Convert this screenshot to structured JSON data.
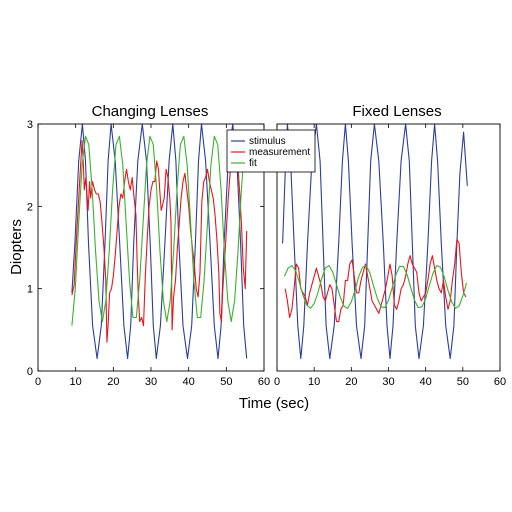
{
  "chart_data": [
    {
      "type": "line",
      "title": "Changing Lenses",
      "xlabel": "Time (sec)",
      "ylabel": "Diopters",
      "xlim": [
        0,
        60
      ],
      "ylim": [
        0,
        3
      ],
      "xticks": [
        0,
        10,
        20,
        30,
        40,
        50,
        60
      ],
      "yticks": [
        0,
        1,
        2,
        3
      ],
      "grid": false,
      "series": [
        {
          "name": "stimulus",
          "color": "#2b3d9e",
          "x": [
            9,
            9.8,
            10.8,
            11.8,
            12.6,
            13.4,
            14.5,
            15.7,
            16.8,
            17.8,
            18.6,
            19.4,
            20.5,
            21.7,
            22.8,
            23.8,
            24.6,
            25.4,
            26.5,
            27.7,
            28.8,
            29.8,
            30.6,
            31.4,
            32.5,
            33.7,
            34.8,
            35.8,
            36.6,
            37.4,
            38.5,
            39.7,
            40.8,
            41.8,
            42.6,
            43.4,
            44.5,
            45.7,
            46.8,
            47.8,
            48.6,
            49.4,
            50.5,
            51.7,
            52.8,
            53.8,
            54.6,
            55.4
          ],
          "y": [
            0.95,
            1.55,
            2.55,
            3,
            2.55,
            1.55,
            0.55,
            0.15,
            0.55,
            1.55,
            2.55,
            3,
            2.55,
            1.55,
            0.55,
            0.15,
            0.55,
            1.55,
            2.55,
            3,
            2.55,
            1.55,
            0.55,
            0.15,
            0.55,
            1.55,
            2.55,
            3,
            2.55,
            1.55,
            0.55,
            0.15,
            0.55,
            1.55,
            2.55,
            3,
            2.55,
            1.55,
            0.55,
            0.15,
            0.55,
            1.55,
            2.55,
            3,
            2.55,
            1.55,
            0.55,
            0.15
          ]
        },
        {
          "name": "measurement",
          "color": "#e8161b",
          "x": [
            9,
            9.6,
            10.2,
            10.8,
            11.3,
            11.7,
            12,
            12.3,
            12.7,
            13,
            13.3,
            13.7,
            14,
            14.5,
            15,
            15.5,
            16,
            16.5,
            17,
            17.5,
            18,
            18.3,
            18.6,
            19,
            19.5,
            20,
            20.5,
            21,
            21.5,
            22,
            22.5,
            23,
            23.5,
            24,
            24.5,
            25,
            25.5,
            26,
            26.3,
            26.6,
            27,
            27.5,
            28,
            28.5,
            29,
            29.5,
            30,
            30.5,
            31,
            31.5,
            32,
            32.3,
            32.7,
            33,
            33.5,
            34,
            34.5,
            35,
            35.3,
            35.6,
            36,
            36.5,
            37,
            37.5,
            38,
            38.5,
            39,
            39.5,
            40,
            40.5,
            41,
            41.5,
            42,
            42.5,
            43,
            43.5,
            44,
            44.5,
            45,
            45.5,
            46,
            46.5,
            47,
            47.5,
            48,
            48.3,
            48.7,
            49,
            49.5,
            50,
            50.5,
            51,
            51.5,
            52,
            52.5,
            53,
            53.5,
            54,
            54.5,
            55,
            55.4
          ],
          "y": [
            0.92,
            1.05,
            1.6,
            2.1,
            2.5,
            2.8,
            2.55,
            2.2,
            2.35,
            2.15,
            1.95,
            2.3,
            2.1,
            2.3,
            2.2,
            2.15,
            2.15,
            2.05,
            1.8,
            1.5,
            1.1,
            0.35,
            0.55,
            0.95,
            1.0,
            1.15,
            1.4,
            1.7,
            2.0,
            2.15,
            2.1,
            2.3,
            2.45,
            2.3,
            2.2,
            2.35,
            2.1,
            1.9,
            1.35,
            0.95,
            0.6,
            0.65,
            0.55,
            1.15,
            1.6,
            2.0,
            2.2,
            2.3,
            2.3,
            2.55,
            2.45,
            2.2,
            1.95,
            2.0,
            2.1,
            2.45,
            2.35,
            2.1,
            1.8,
            0.5,
            0.9,
            1.1,
            1.5,
            1.8,
            2.1,
            2.3,
            2.4,
            2.2,
            2.0,
            1.7,
            1.5,
            1.3,
            1.0,
            0.9,
            1.2,
            2.05,
            2.3,
            2.35,
            2.45,
            2.3,
            2.2,
            2.1,
            1.9,
            1.6,
            1.2,
            0.7,
            0.6,
            0.95,
            1.3,
            1.7,
            2.1,
            2.4,
            2.6,
            2.65,
            2.7,
            2.55,
            2.2,
            1.8,
            1.25,
            1.0,
            1.7
          ]
        },
        {
          "name": "fit",
          "color": "#3bb22d",
          "x": [
            9,
            9.9,
            10.8,
            11.7,
            12.6,
            13.5,
            14.4,
            15.3,
            16.2,
            17.1,
            18,
            18.9,
            19.8,
            20.7,
            21.6,
            22.5,
            23.4,
            24.3,
            25.2,
            26.1,
            27,
            27.9,
            28.8,
            29.7,
            30.6,
            31.5,
            32.4,
            33.3,
            34.2,
            35.1,
            36,
            36.9,
            37.8,
            38.7,
            39.6,
            40.5,
            41.4,
            42.3,
            43.2,
            44.1,
            45,
            45.9,
            46.8,
            47.7,
            48.6,
            49.5,
            50.4,
            51.3,
            52.2,
            53.1,
            54,
            54.9
          ],
          "y": [
            0.55,
            1.0,
            1.8,
            2.5,
            2.85,
            2.75,
            2.2,
            1.45,
            0.85,
            0.6,
            0.85,
            1.45,
            2.2,
            2.75,
            2.85,
            2.5,
            1.8,
            1.1,
            0.65,
            0.65,
            1.1,
            1.8,
            2.5,
            2.85,
            2.75,
            2.2,
            1.45,
            0.85,
            0.6,
            0.85,
            1.45,
            2.2,
            2.75,
            2.85,
            2.5,
            1.8,
            1.1,
            0.65,
            0.65,
            1.1,
            1.8,
            2.5,
            2.85,
            2.75,
            2.2,
            1.45,
            0.85,
            0.6,
            0.85,
            1.45,
            2.2,
            2.75
          ]
        }
      ]
    },
    {
      "type": "line",
      "title": "Fixed Lenses",
      "xlabel": "Time (sec)",
      "ylabel": "",
      "xlim": [
        0,
        60
      ],
      "ylim": [
        0,
        3
      ],
      "xticks": [
        0,
        10,
        20,
        30,
        40,
        50,
        60
      ],
      "yticks": [],
      "grid": false,
      "series": [
        {
          "name": "stimulus",
          "color": "#2b3d9e",
          "x": [
            1.5,
            2.2,
            2.8,
            3.6,
            4.6,
            5.6,
            6.4,
            7.2,
            8.2,
            9.4,
            10.6,
            11.6,
            12.4,
            13.2,
            14.2,
            15.4,
            16.6,
            17.6,
            18.4,
            19.2,
            20.2,
            21.4,
            22.6,
            23.6,
            24.4,
            25.2,
            26.2,
            27.4,
            28.6,
            29.6,
            30.4,
            31.2,
            32.2,
            33.4,
            34.6,
            35.6,
            36.4,
            37.2,
            38.2,
            39.4,
            40.6,
            41.6,
            42.4,
            43.2,
            44.2,
            45.4,
            46.6,
            47.6,
            48.4,
            49.2,
            50.2,
            51.2
          ],
          "y": [
            1.55,
            2.4,
            3,
            2.6,
            1.55,
            0.55,
            0.15,
            0.55,
            1.55,
            2.55,
            3,
            2.55,
            1.55,
            0.55,
            0.15,
            0.55,
            1.55,
            2.55,
            3,
            2.55,
            1.55,
            0.55,
            0.15,
            0.55,
            1.55,
            2.55,
            3,
            2.55,
            1.55,
            0.55,
            0.15,
            0.55,
            1.55,
            2.55,
            3,
            2.55,
            1.55,
            0.55,
            0.15,
            0.55,
            1.55,
            2.55,
            3,
            2.55,
            1.55,
            0.55,
            0.15,
            0.55,
            1.55,
            2.4,
            2.9,
            2.25
          ]
        },
        {
          "name": "measurement",
          "color": "#e8161b",
          "x": [
            2.2,
            2.8,
            3.4,
            4,
            4.6,
            5.2,
            5.8,
            6.4,
            7,
            7.6,
            8.2,
            8.8,
            9.4,
            10,
            10.6,
            11.2,
            11.8,
            12.4,
            13,
            13.6,
            14.2,
            14.8,
            15.4,
            16,
            16.6,
            17.2,
            17.8,
            18.4,
            19,
            19.6,
            20.2,
            20.8,
            21.4,
            22,
            22.6,
            23.2,
            23.8,
            24.4,
            25,
            25.6,
            26.2,
            26.8,
            27.4,
            28,
            28.6,
            29.2,
            29.8,
            30.4,
            31,
            31.6,
            32.2,
            32.8,
            33.4,
            34,
            34.6,
            35.2,
            35.8,
            36.4,
            37,
            37.6,
            38.2,
            38.8,
            39.4,
            40,
            40.6,
            41.2,
            41.8,
            42.4,
            43,
            43.6,
            44.2,
            44.8,
            45.4,
            46,
            46.6,
            47.2,
            47.8,
            48.4,
            49,
            49.6,
            50.2,
            50.8
          ],
          "y": [
            1.0,
            0.85,
            0.65,
            0.75,
            1.0,
            1.3,
            1.25,
            1.0,
            0.95,
            0.9,
            0.8,
            0.95,
            1.05,
            1.15,
            1.25,
            1.15,
            1.05,
            0.9,
            0.85,
            0.95,
            1.05,
            1.0,
            0.8,
            0.6,
            0.6,
            0.75,
            0.8,
            1.1,
            1.1,
            1.3,
            1.35,
            1.15,
            0.95,
            0.95,
            1.1,
            1.2,
            1.3,
            1.15,
            1.0,
            0.85,
            0.8,
            0.75,
            0.7,
            0.8,
            0.9,
            1.0,
            1.15,
            1.3,
            1.15,
            0.8,
            0.75,
            0.85,
            1.0,
            1.05,
            1.15,
            1.3,
            1.4,
            1.3,
            1.25,
            1.2,
            0.95,
            0.85,
            0.9,
            0.95,
            1.1,
            1.3,
            1.4,
            1.25,
            1.1,
            1.0,
            0.95,
            1.1,
            0.9,
            0.75,
            0.85,
            1.1,
            1.3,
            1.6,
            1.55,
            1.2,
            0.95,
            0.9
          ]
        },
        {
          "name": "fit",
          "color": "#3bb22d",
          "x": [
            2,
            3,
            4,
            5,
            6,
            7,
            8,
            9,
            10,
            11,
            12,
            13,
            14,
            15,
            16,
            17,
            18,
            19,
            20,
            21,
            22,
            23,
            24,
            25,
            26,
            27,
            28,
            29,
            30,
            31,
            32,
            33,
            34,
            35,
            36,
            37,
            38,
            39,
            40,
            41,
            42,
            43,
            44,
            45,
            46,
            47,
            48,
            49,
            50,
            51
          ],
          "y": [
            1.15,
            1.25,
            1.28,
            1.22,
            1.08,
            0.92,
            0.8,
            0.76,
            0.82,
            0.95,
            1.12,
            1.25,
            1.28,
            1.2,
            1.05,
            0.9,
            0.79,
            0.76,
            0.84,
            0.98,
            1.15,
            1.26,
            1.28,
            1.19,
            1.03,
            0.88,
            0.78,
            0.77,
            0.86,
            1.01,
            1.17,
            1.27,
            1.27,
            1.17,
            1.01,
            0.86,
            0.77,
            0.78,
            0.88,
            1.04,
            1.19,
            1.28,
            1.26,
            1.14,
            0.98,
            0.84,
            0.76,
            0.79,
            0.91,
            1.07
          ]
        }
      ]
    }
  ],
  "legend": {
    "placement": "top-right of left panel",
    "entries": [
      {
        "label": "stimulus",
        "color": "#2b3d9e"
      },
      {
        "label": "measurement",
        "color": "#e8161b"
      },
      {
        "label": "fit",
        "color": "#3bb22d"
      }
    ]
  }
}
